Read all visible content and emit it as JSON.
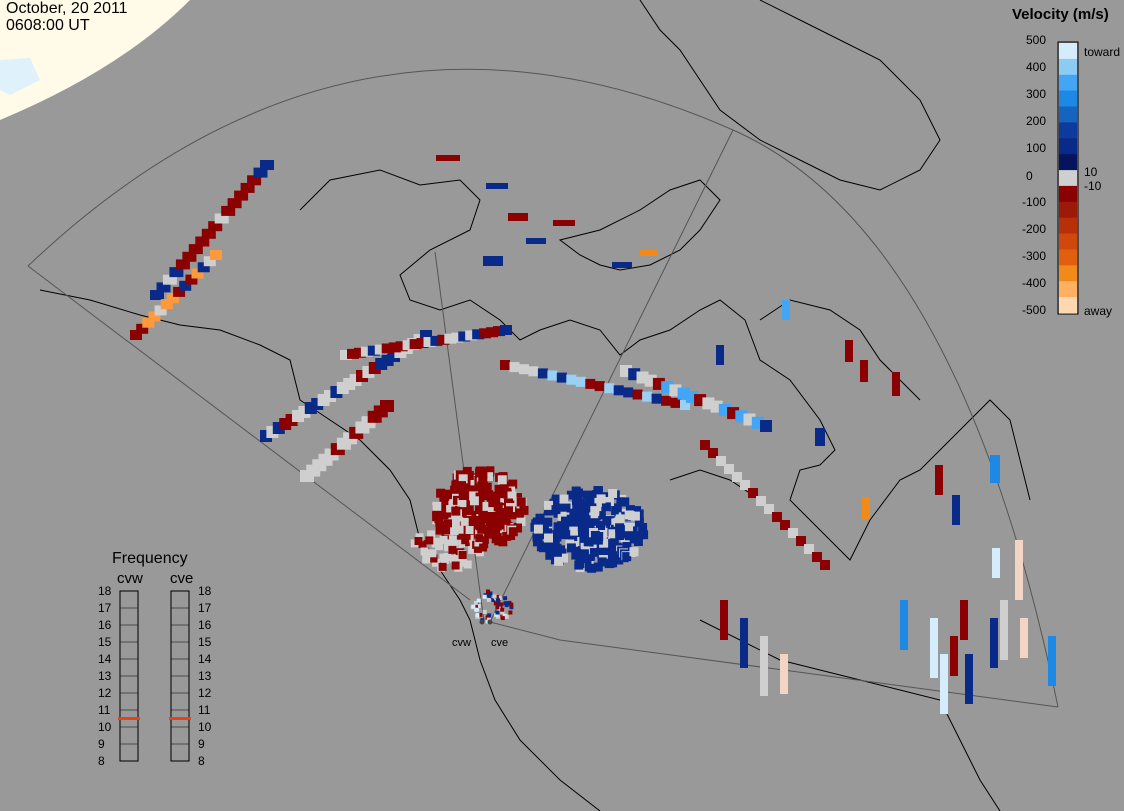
{
  "header": {
    "date": "October, 20 2011",
    "time": "0608:00 UT"
  },
  "colorbar": {
    "title": "Velocity (m/s)",
    "ticks": [
      "500",
      "400",
      "300",
      "200",
      "100",
      "10",
      "0",
      "-10",
      "-100",
      "-200",
      "-300",
      "-400",
      "-500"
    ],
    "toward_label": "toward",
    "away_label": "away",
    "colors": {
      "toward_high": "#d4ecfb",
      "toward_mid": "#1e88e5",
      "toward_low": "#0a2a8a",
      "zero": "#cfcfcf",
      "away_low": "#8b0000",
      "away_mid": "#e06010",
      "away_high": "#ffd8b0"
    }
  },
  "frequency": {
    "title": "Frequency",
    "radars": [
      "cvw",
      "cve"
    ],
    "scale": [
      "18",
      "17",
      "16",
      "15",
      "14",
      "13",
      "12",
      "11",
      "10",
      "9",
      "8"
    ],
    "values_mhz": [
      10.5,
      10.5
    ],
    "marker_color": "#e8401c"
  },
  "sites": [
    "cvw",
    "cve"
  ],
  "map_colors": {
    "ocean": "#999999",
    "land_outline": "#000000",
    "daylight": "#fffbe8",
    "fov": "#555555",
    "ground_scatter": "#cfcfcf"
  }
}
